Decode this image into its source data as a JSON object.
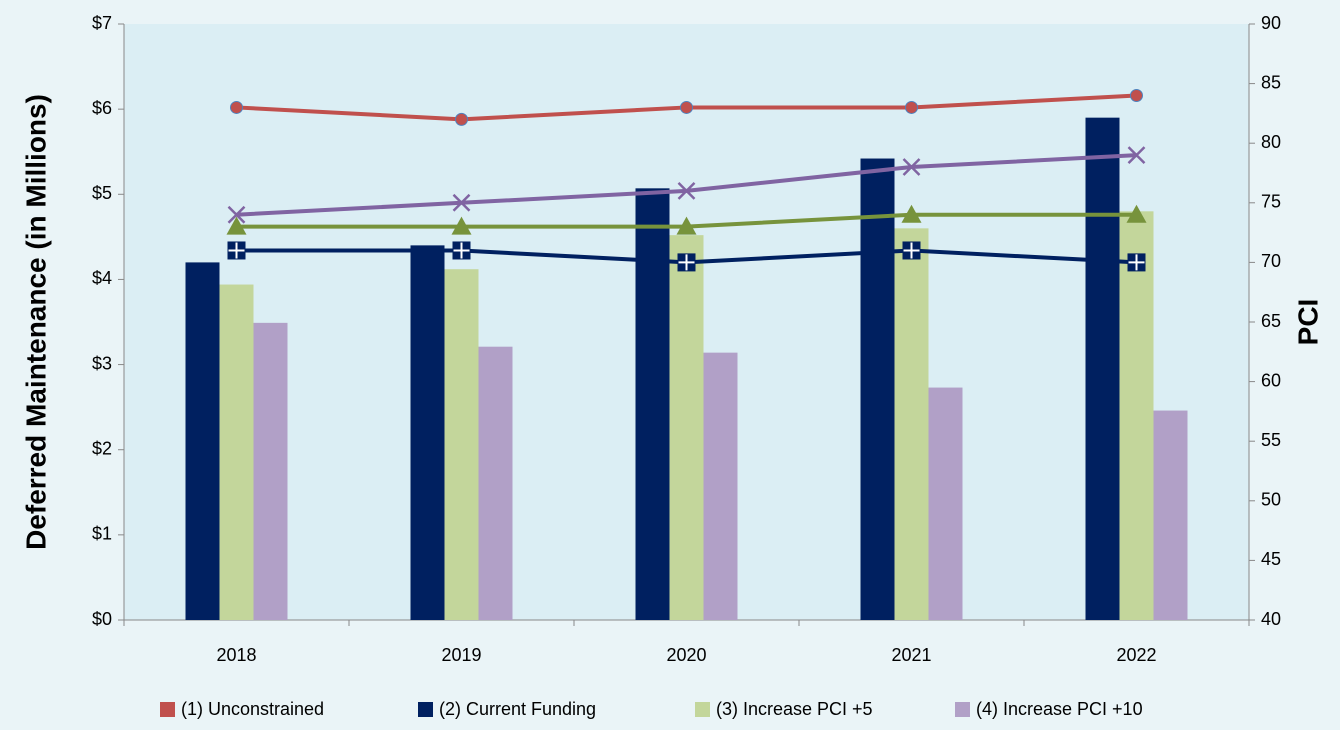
{
  "chart_data": {
    "type": "bar_line",
    "y_label": "Deferred Maintenance (in Millions)",
    "y2_label": "PCI",
    "categories": [
      "2018",
      "2019",
      "2020",
      "2021",
      "2022"
    ],
    "ylim": [
      0,
      7
    ],
    "yticks": [
      {
        "value": 0,
        "label": "$0"
      },
      {
        "value": 1,
        "label": "$1"
      },
      {
        "value": 2,
        "label": "$2"
      },
      {
        "value": 3,
        "label": "$3"
      },
      {
        "value": 4,
        "label": "$4"
      },
      {
        "value": 5,
        "label": "$5"
      },
      {
        "value": 6,
        "label": "$6"
      },
      {
        "value": 7,
        "label": "$7"
      }
    ],
    "y2lim": [
      40,
      90
    ],
    "y2ticks": [
      40,
      45,
      50,
      55,
      60,
      65,
      70,
      75,
      80,
      85,
      90
    ],
    "series": [
      {
        "name": "(1) Unconstrained",
        "color": "#c0504d",
        "line_color": "#c0504d",
        "marker": "circle",
        "pci_values": [
          83,
          82,
          83,
          83,
          84
        ],
        "axis": "y2"
      },
      {
        "name": "(2) Current Funding",
        "color": "#002060",
        "line_color": "#002060",
        "marker": "square",
        "values": [
          4.2,
          4.4,
          5.07,
          5.42,
          5.9
        ],
        "pci_values": [
          71,
          71,
          70,
          71,
          70
        ]
      },
      {
        "name": "(3) Increase PCI +5",
        "color": "#c3d69b",
        "line_color": "#77933c",
        "marker": "triangle",
        "values": [
          3.94,
          4.12,
          4.52,
          4.6,
          4.8
        ],
        "pci_values": [
          73,
          73,
          73,
          74,
          74
        ]
      },
      {
        "name": "(4) Increase PCI +10",
        "color": "#b1a0c7",
        "line_color": "#8064a2",
        "marker": "x",
        "values": [
          3.49,
          3.21,
          3.14,
          2.73,
          2.46
        ],
        "pci_values": [
          74,
          75,
          76,
          78,
          79
        ]
      }
    ]
  }
}
